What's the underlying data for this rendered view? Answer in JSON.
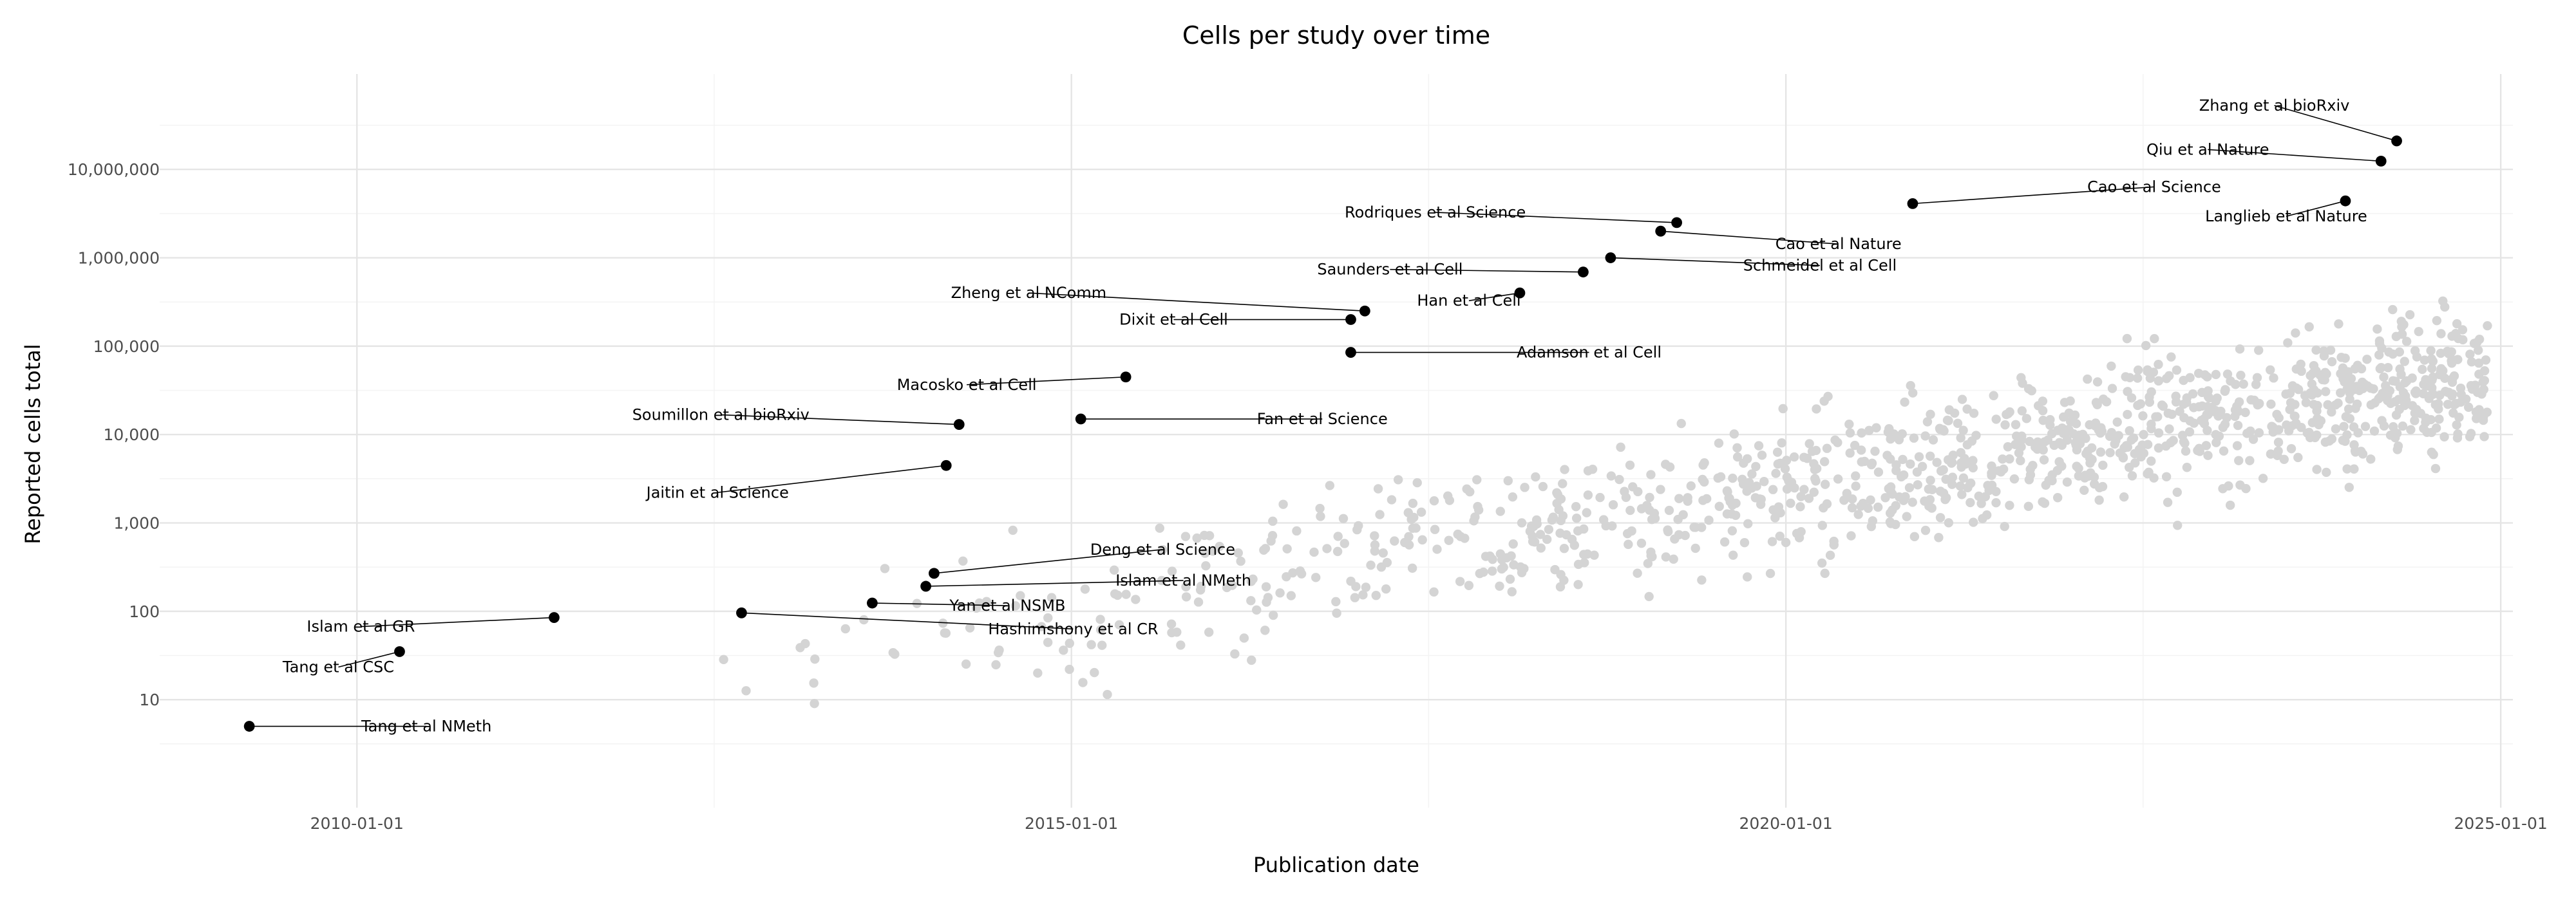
{
  "chart_data": {
    "type": "scatter",
    "title": "Cells per study over time",
    "xlabel": "Publication date",
    "ylabel": "Reported cells total",
    "x_ticks": [
      "2010-01-01",
      "2015-01-01",
      "2020-01-01",
      "2025-01-01"
    ],
    "y_ticks": [
      "10",
      "100",
      "1,000",
      "10,000",
      "100,000",
      "1,000,000",
      "10,000,000"
    ],
    "x_range": [
      "2008-08-15",
      "2025-02-01"
    ],
    "y_range": [
      0.6,
      120000000
    ],
    "y_scale": "log",
    "grid": true,
    "colors": {
      "highlight": "#000000",
      "background_points": "#d4d4d4"
    },
    "highlighted": [
      {
        "label": "Tang et al NMeth",
        "date": "2009-04-01",
        "cells": 5
      },
      {
        "label": "Tang et al CSC",
        "date": "2010-04-20",
        "cells": 35
      },
      {
        "label": "Islam et al GR",
        "date": "2011-05-20",
        "cells": 85
      },
      {
        "label": "Hashimshony et al CR",
        "date": "2012-09-10",
        "cells": 96
      },
      {
        "label": "Yan et al NSMB",
        "date": "2013-08-10",
        "cells": 124
      },
      {
        "label": "Islam et al NMeth",
        "date": "2013-12-25",
        "cells": 192
      },
      {
        "label": "Deng et al Science",
        "date": "2014-01-15",
        "cells": 269
      },
      {
        "label": "Jaitin et al Science",
        "date": "2014-02-15",
        "cells": 4468
      },
      {
        "label": "Soumillon et al bioRxiv",
        "date": "2014-03-20",
        "cells": 13000
      },
      {
        "label": "Macosko et al Cell",
        "date": "2015-05-20",
        "cells": 44808
      },
      {
        "label": "Fan et al Science",
        "date": "2015-01-25",
        "cells": 15000
      },
      {
        "label": "Dixit et al Cell",
        "date": "2016-12-15",
        "cells": 200000
      },
      {
        "label": "Zheng et al NComm",
        "date": "2017-01-20",
        "cells": 250000
      },
      {
        "label": "Adamson et al Cell",
        "date": "2016-12-15",
        "cells": 85000
      },
      {
        "label": "Han et al Cell",
        "date": "2018-02-20",
        "cells": 400000
      },
      {
        "label": "Saunders et al Cell",
        "date": "2018-08-01",
        "cells": 690000
      },
      {
        "label": "Schmeidel et al Cell",
        "date": "2018-10-10",
        "cells": 1000000
      },
      {
        "label": "Rodriques et al Science",
        "date": "2019-03-28",
        "cells": 2500000
      },
      {
        "label": "Cao et al Nature",
        "date": "2019-02-15",
        "cells": 2000000
      },
      {
        "label": "Cao et al Science",
        "date": "2020-11-20",
        "cells": 4100000
      },
      {
        "label": "Langlieb et al Nature",
        "date": "2023-12-01",
        "cells": 4400000
      },
      {
        "label": "Qiu et al Nature",
        "date": "2024-03-01",
        "cells": 12400000
      },
      {
        "label": "Zhang et al bioRxiv",
        "date": "2024-04-10",
        "cells": 21000000
      }
    ]
  }
}
